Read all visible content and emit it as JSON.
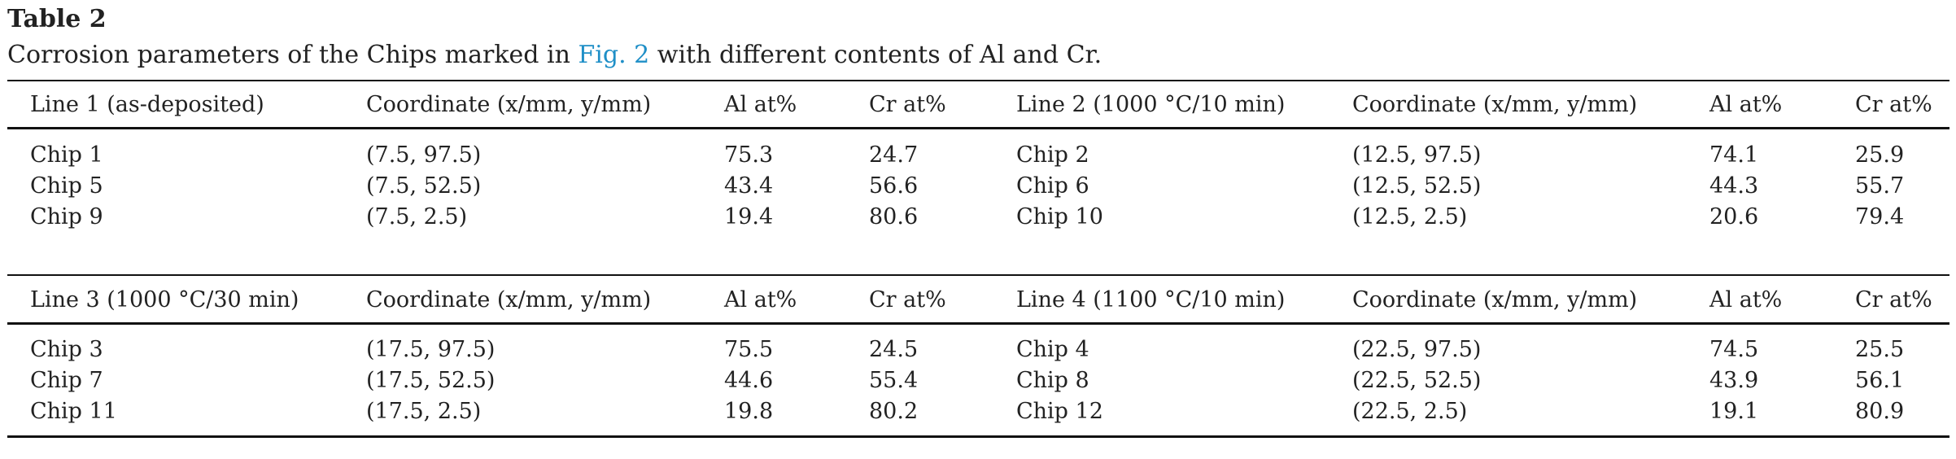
{
  "label": "Table 2",
  "caption": {
    "before": "Corrosion parameters of the Chips marked in ",
    "link": "Fig. 2",
    "after": " with different contents of Al and Cr."
  },
  "colors": {
    "text": "#222222",
    "link": "#1f8fc7",
    "rules": "#111111"
  },
  "blocks": [
    {
      "headers": [
        "Line 1 (as-deposited)",
        "Coordinate (x/mm, y/mm)",
        "Al at%",
        "Cr at%",
        "Line 2 (1000 °C/10 min)",
        "Coordinate (x/mm, y/mm)",
        "Al at%",
        "Cr at%"
      ],
      "rows": [
        [
          "Chip 1",
          "(7.5, 97.5)",
          "75.3",
          "24.7",
          "Chip 2",
          "(12.5, 97.5)",
          "74.1",
          "25.9"
        ],
        [
          "Chip 5",
          "(7.5, 52.5)",
          "43.4",
          "56.6",
          "Chip 6",
          "(12.5, 52.5)",
          "44.3",
          "55.7"
        ],
        [
          "Chip 9",
          "(7.5, 2.5)",
          "19.4",
          "80.6",
          "Chip 10",
          "(12.5, 2.5)",
          "20.6",
          "79.4"
        ]
      ]
    },
    {
      "headers": [
        "Line 3 (1000 °C/30 min)",
        "Coordinate (x/mm, y/mm)",
        "Al at%",
        "Cr at%",
        "Line 4 (1100 °C/10 min)",
        "Coordinate (x/mm, y/mm)",
        "Al at%",
        "Cr at%"
      ],
      "rows": [
        [
          "Chip 3",
          "(17.5, 97.5)",
          "75.5",
          "24.5",
          "Chip 4",
          "(22.5, 97.5)",
          "74.5",
          "25.5"
        ],
        [
          "Chip 7",
          "(17.5, 52.5)",
          "44.6",
          "55.4",
          "Chip 8",
          "(22.5, 52.5)",
          "43.9",
          "56.1"
        ],
        [
          "Chip 11",
          "(17.5, 2.5)",
          "19.8",
          "80.2",
          "Chip 12",
          "(22.5, 2.5)",
          "19.1",
          "80.9"
        ]
      ]
    }
  ]
}
